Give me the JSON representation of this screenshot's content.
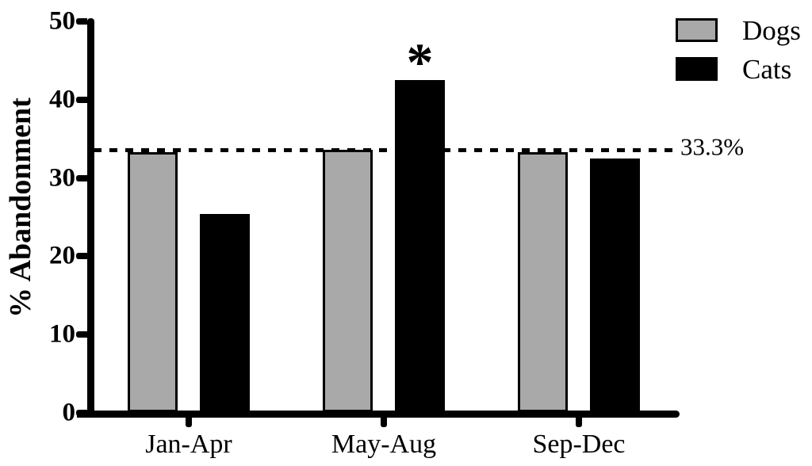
{
  "chart_data": {
    "type": "bar",
    "title": "",
    "ylabel": "% Abandonment",
    "xlabel": "",
    "categories": [
      "Jan-Apr",
      "May-Aug",
      "Sep-Dec"
    ],
    "series": [
      {
        "name": "Dogs",
        "color": "#A9A9A9",
        "border": "#000000",
        "values": [
          33.3,
          33.6,
          33.3
        ]
      },
      {
        "name": "Cats",
        "color": "#000000",
        "border": "#000000",
        "values": [
          25.4,
          42.5,
          32.5
        ]
      }
    ],
    "ylim": [
      0,
      50
    ],
    "yticks": [
      0,
      10,
      20,
      30,
      40,
      50
    ],
    "grid": false,
    "reference_line": {
      "value": 33.3,
      "label": "33.3%",
      "style": "dashed"
    },
    "annotations": [
      {
        "text": "*",
        "series": "Cats",
        "category": "May-Aug"
      }
    ],
    "legend": {
      "position": "top-right",
      "entries": [
        "Dogs",
        "Cats"
      ]
    },
    "colors": {
      "axis": "#000000",
      "background": "#ffffff"
    }
  }
}
